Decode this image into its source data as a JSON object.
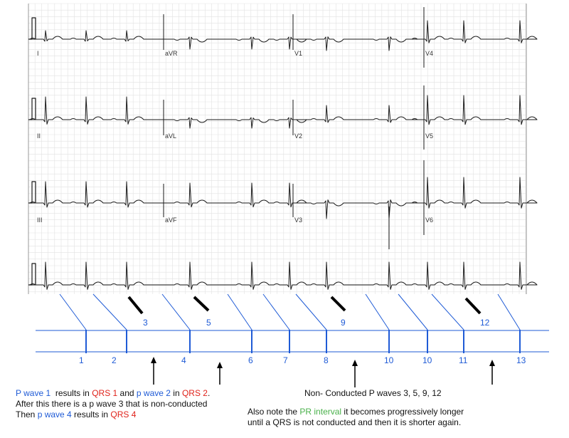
{
  "colors": {
    "grid": "#e2e2e2",
    "trace": "#1a1a1a",
    "annotation_blue": "#1f5bd6",
    "highlight_red": "#e0231b",
    "highlight_green": "#49b04a"
  },
  "lead_labels": {
    "row1": [
      "I",
      "aVR",
      "V1",
      "V4"
    ],
    "row2": [
      "II",
      "aVL",
      "V2",
      "V5"
    ],
    "row3": [
      "III",
      "aVF",
      "V3",
      "V6"
    ]
  },
  "nonconducted_labels": [
    "3",
    "5",
    "9",
    "12"
  ],
  "qrs_labels": [
    "1",
    "2",
    "4",
    "6",
    "7",
    "8",
    "10",
    "10",
    "11",
    "13"
  ],
  "notes": {
    "left": {
      "line1_a": "P wave 1",
      "line1_b": "  results in ",
      "line1_c": "QRS 1",
      "line1_d": " and ",
      "line1_e": "p wave 2",
      "line1_f": " in ",
      "line1_g": "QRS 2",
      "line1_h": ".",
      "line2": "After this there is a p wave 3 that is non-conducted",
      "line3_a": "Then ",
      "line3_b": "p wave 4",
      "line3_c": " results in ",
      "line3_d": "QRS 4"
    },
    "right": {
      "line1": "Non- Conducted P waves 3, 5, 9, 12",
      "line2_a": "Also note the ",
      "line2_b": "PR interval",
      "line2_c": " it becomes progressively longer",
      "line3": "until a QRS is not conducted and then it is shorter again."
    }
  }
}
